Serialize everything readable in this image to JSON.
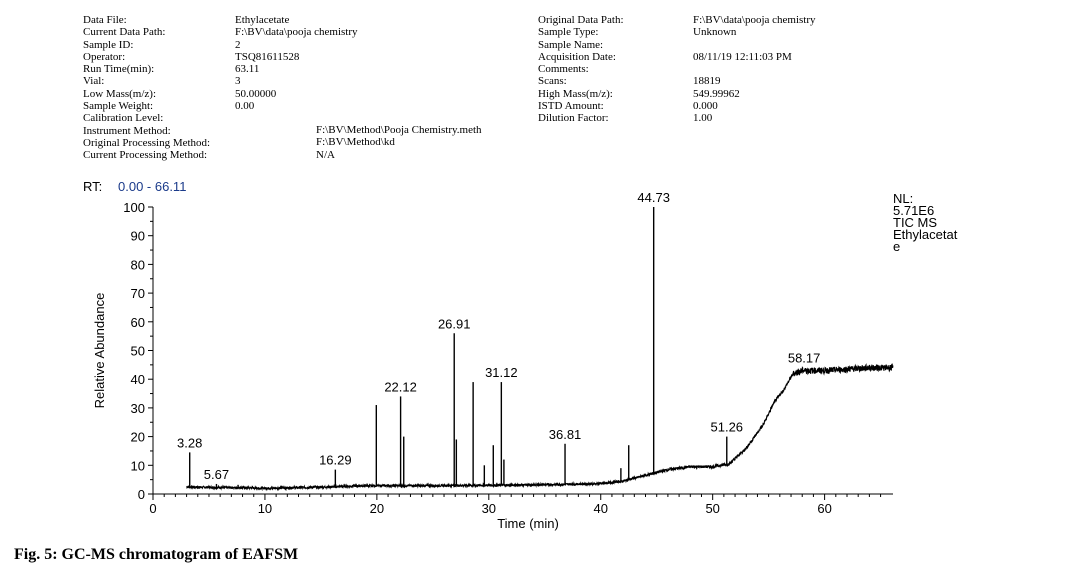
{
  "header": {
    "left": [
      {
        "label": "Data File:",
        "value": "Ethylacetate"
      },
      {
        "label": "Current Data Path:",
        "value": "F:\\BV\\data\\pooja chemistry"
      },
      {
        "label": "Sample ID:",
        "value": "2"
      },
      {
        "label": "Operator:",
        "value": "TSQ81611528"
      },
      {
        "label": "Run Time(min):",
        "value": "63.11"
      },
      {
        "label": "Vial:",
        "value": "3"
      },
      {
        "label": "Low Mass(m/z):",
        "value": "50.00000"
      },
      {
        "label": "Sample Weight:",
        "value": "0.00"
      },
      {
        "label": "Calibration Level:",
        "value": ""
      },
      {
        "label": "Instrument Method:",
        "value": "F:\\BV\\Method\\Pooja Chemistry.meth"
      },
      {
        "label": "Original Processing Method:",
        "value": "F:\\BV\\Method\\kd"
      },
      {
        "label": "Current Processing Method:",
        "value": "N/A"
      }
    ],
    "right": [
      {
        "label": "Original Data Path:",
        "value": "F:\\BV\\data\\pooja chemistry"
      },
      {
        "label": "Sample Type:",
        "value": "Unknown"
      },
      {
        "label": "Sample Name:",
        "value": ""
      },
      {
        "label": "Acquisition Date:",
        "value": "08/11/19 12:11:03 PM"
      },
      {
        "label": "Comments:",
        "value": ""
      },
      {
        "label": "Scans:",
        "value": "18819"
      },
      {
        "label": "High Mass(m/z):",
        "value": "549.99962"
      },
      {
        "label": "ISTD Amount:",
        "value": "0.000"
      },
      {
        "label": "Dilution Factor:",
        "value": "1.00"
      }
    ]
  },
  "chart_data": {
    "type": "line",
    "rt_label": "RT:",
    "rt_range": "0.00 - 66.11",
    "xlabel": "Time (min)",
    "ylabel": "Relative Abundance",
    "xlim": [
      0,
      66.11
    ],
    "ylim": [
      0,
      100
    ],
    "xticks": [
      0,
      10,
      20,
      30,
      40,
      50,
      60
    ],
    "yticks": [
      0,
      10,
      20,
      30,
      40,
      50,
      60,
      70,
      80,
      90,
      100
    ],
    "info": [
      "NL:",
      "5.71E6",
      "TIC  MS",
      "Ethylacetat",
      "e"
    ],
    "colors": {
      "trace": "#000000",
      "rt_value": "#1a3a8a"
    },
    "baseline": [
      [
        3.0,
        2.5
      ],
      [
        5,
        2.3
      ],
      [
        8,
        2.2
      ],
      [
        10,
        2.0
      ],
      [
        14,
        2.3
      ],
      [
        16,
        2.5
      ],
      [
        18,
        2.8
      ],
      [
        20,
        2.9
      ],
      [
        24,
        2.9
      ],
      [
        28,
        3.0
      ],
      [
        32,
        3.1
      ],
      [
        36,
        3.3
      ],
      [
        40,
        3.6
      ],
      [
        42,
        4.5
      ],
      [
        44,
        6.5
      ],
      [
        46,
        8.5
      ],
      [
        48,
        9.5
      ],
      [
        50,
        9.5
      ],
      [
        51.5,
        10.5
      ],
      [
        53,
        16
      ],
      [
        54.5,
        24
      ],
      [
        55.5,
        32
      ],
      [
        56.3,
        36
      ],
      [
        57.2,
        42
      ],
      [
        58,
        43
      ],
      [
        60,
        43
      ],
      [
        62,
        43.5
      ],
      [
        64,
        44
      ],
      [
        66.11,
        44
      ]
    ],
    "peaks": [
      {
        "rt": 3.28,
        "height": 14.5,
        "label": "3.28"
      },
      {
        "rt": 5.67,
        "height": 3.5,
        "label": "5.67"
      },
      {
        "rt": 7.6,
        "height": 3.2
      },
      {
        "rt": 16.29,
        "height": 8.5,
        "label": "16.29"
      },
      {
        "rt": 19.95,
        "height": 31
      },
      {
        "rt": 22.12,
        "height": 34,
        "label": "22.12"
      },
      {
        "rt": 22.4,
        "height": 20
      },
      {
        "rt": 26.91,
        "height": 56,
        "label": "26.91"
      },
      {
        "rt": 27.1,
        "height": 19
      },
      {
        "rt": 28.6,
        "height": 39
      },
      {
        "rt": 29.6,
        "height": 10
      },
      {
        "rt": 30.4,
        "height": 17
      },
      {
        "rt": 31.12,
        "height": 39,
        "label": "31.12"
      },
      {
        "rt": 31.35,
        "height": 12
      },
      {
        "rt": 36.81,
        "height": 17.5,
        "label": "36.81"
      },
      {
        "rt": 41.8,
        "height": 9
      },
      {
        "rt": 42.5,
        "height": 17
      },
      {
        "rt": 44.73,
        "height": 100,
        "label": "44.73"
      },
      {
        "rt": 51.26,
        "height": 20,
        "label": "51.26"
      },
      {
        "rt": 58.17,
        "height": 44,
        "label": "58.17"
      }
    ]
  },
  "caption": "Fig. 5: GC-MS chromatogram of EAFSM"
}
